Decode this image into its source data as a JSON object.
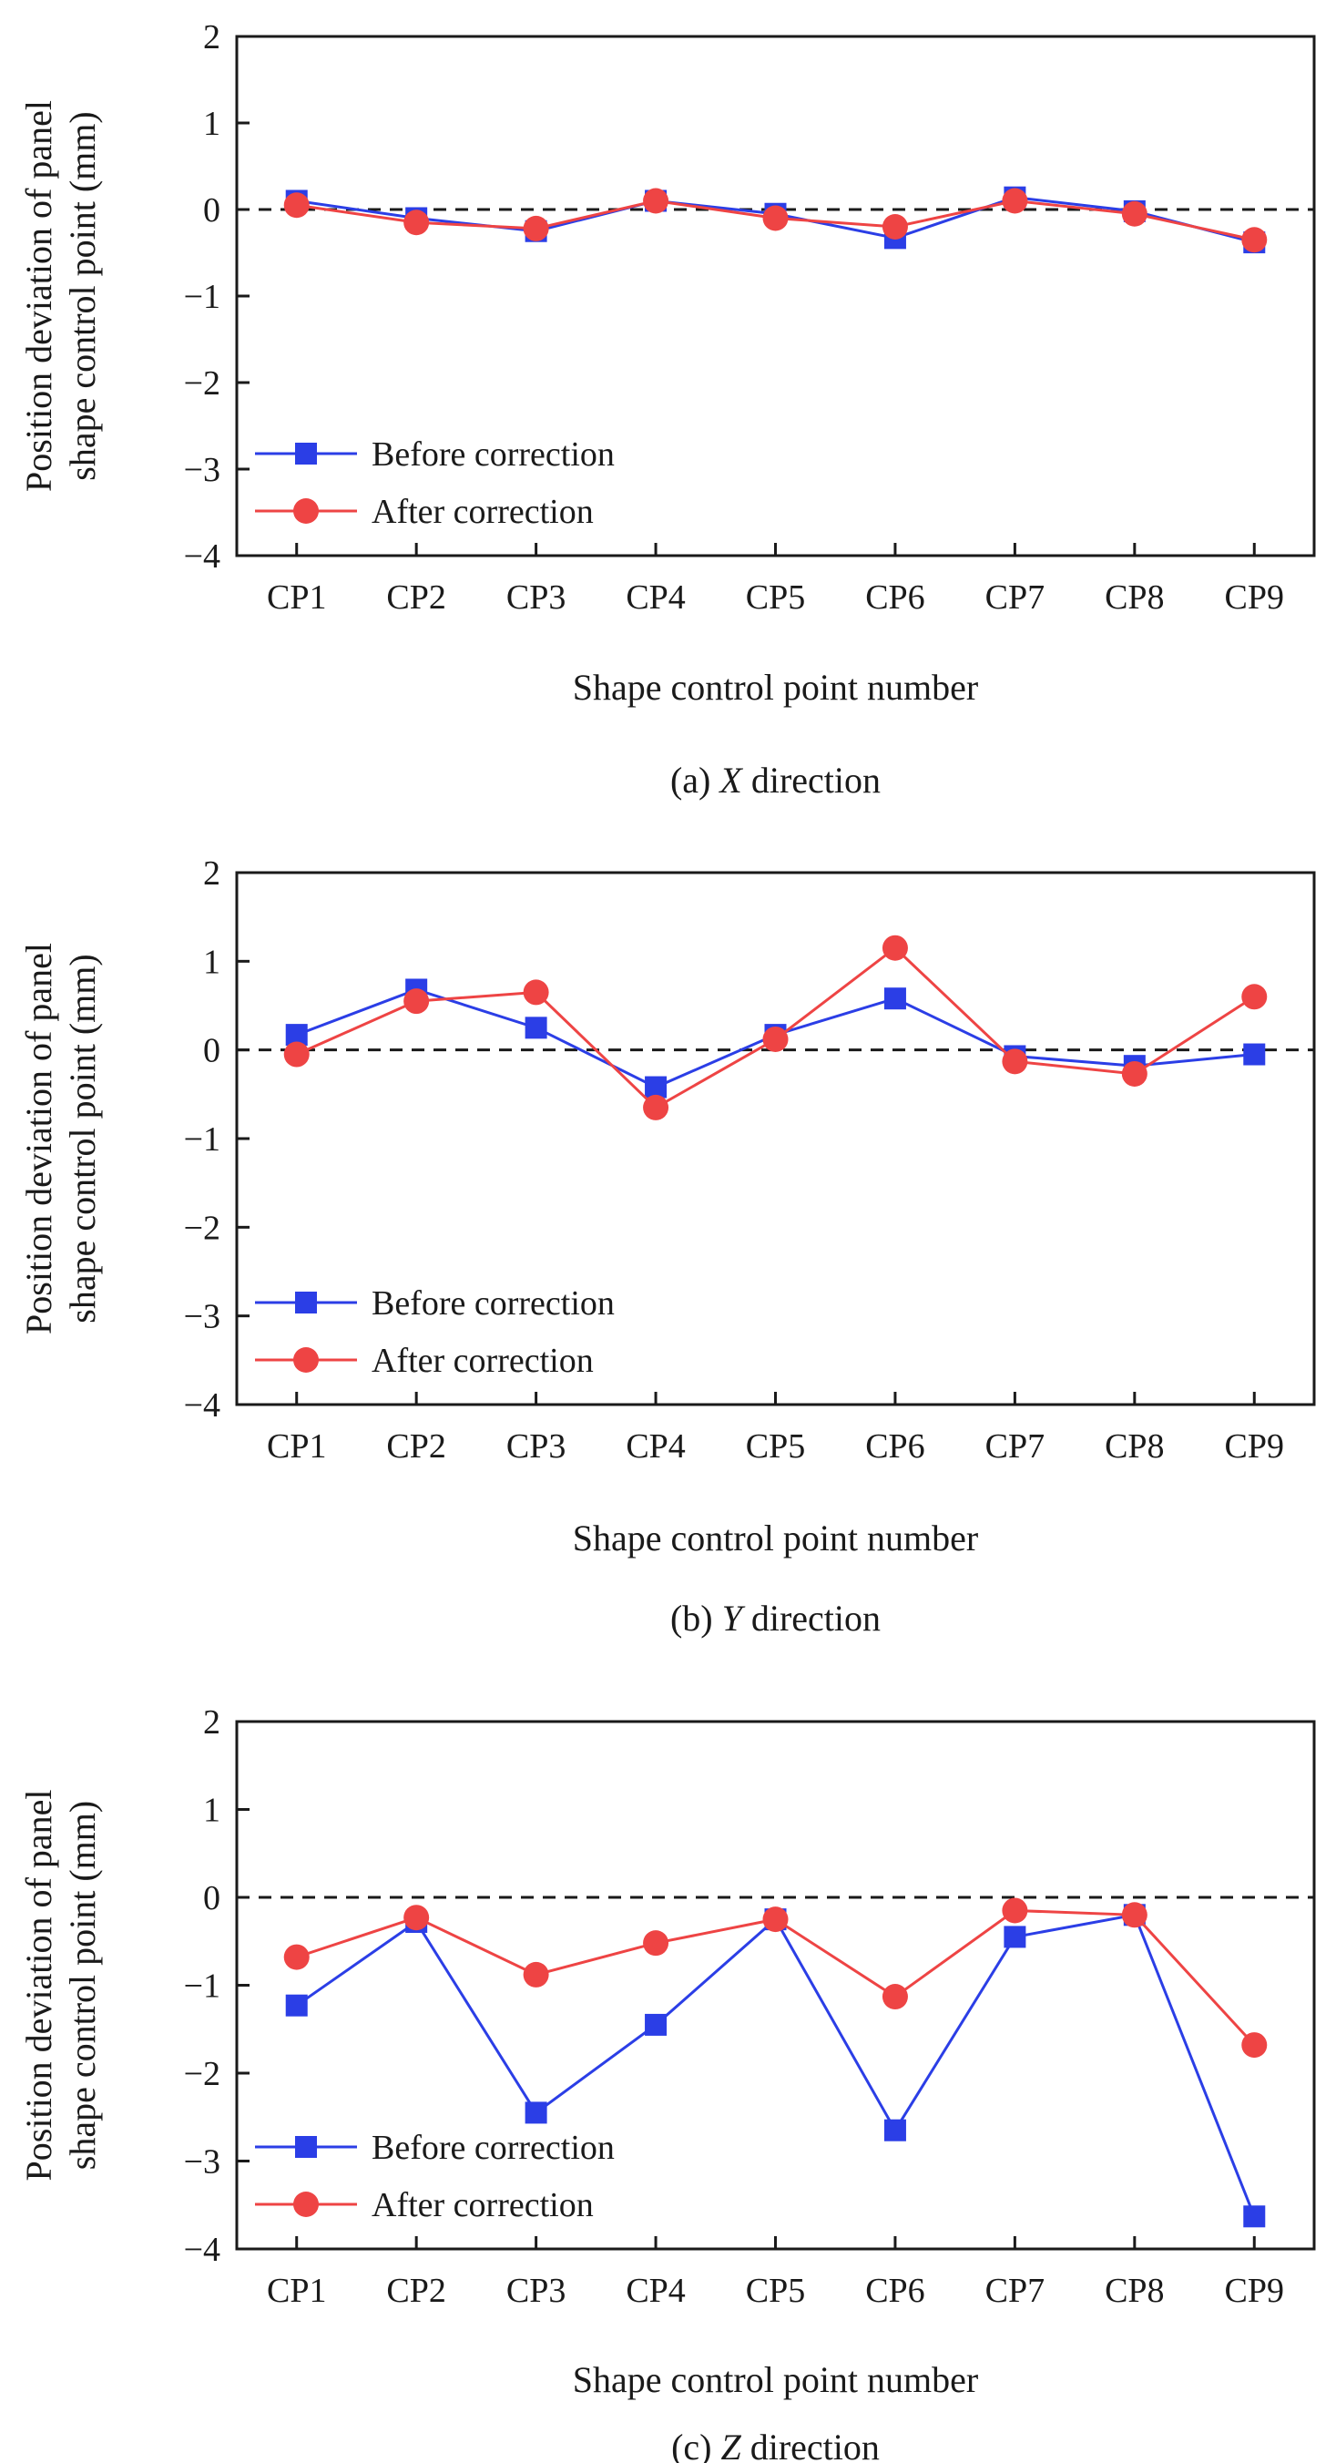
{
  "chart_data": [
    {
      "type": "line",
      "caption_prefix": "(a) ",
      "caption_var": "X",
      "caption_suffix": " direction",
      "xlabel": "Shape control point number",
      "ylabel_line1": "Position deviation of panel",
      "ylabel_line2": "shape control point (mm)",
      "categories": [
        "CP1",
        "CP2",
        "CP3",
        "CP4",
        "CP5",
        "CP6",
        "CP7",
        "CP8",
        "CP9"
      ],
      "ylim": [
        -4,
        2
      ],
      "yticks": [
        "−4",
        "−3",
        "−2",
        "−1",
        "0",
        "1",
        "2"
      ],
      "reference_line": 0,
      "legend_position": "bottom-left",
      "series": [
        {
          "name": "Before correction",
          "marker": "square",
          "color": "#2b3ee6",
          "values": [
            0.1,
            -0.1,
            -0.25,
            0.1,
            -0.05,
            -0.33,
            0.14,
            -0.02,
            -0.38
          ]
        },
        {
          "name": "After correction",
          "marker": "circle",
          "color": "#ee4444",
          "values": [
            0.05,
            -0.15,
            -0.22,
            0.1,
            -0.1,
            -0.2,
            0.1,
            -0.05,
            -0.35
          ]
        }
      ]
    },
    {
      "type": "line",
      "caption_prefix": "(b) ",
      "caption_var": "Y",
      "caption_suffix": " direction",
      "xlabel": "Shape control point number",
      "ylabel_line1": "Position deviation of panel",
      "ylabel_line2": "shape control point (mm)",
      "categories": [
        "CP1",
        "CP2",
        "CP3",
        "CP4",
        "CP5",
        "CP6",
        "CP7",
        "CP8",
        "CP9"
      ],
      "ylim": [
        -4,
        2
      ],
      "yticks": [
        "−4",
        "−3",
        "−2",
        "−1",
        "0",
        "1",
        "2"
      ],
      "reference_line": 0,
      "legend_position": "bottom-left",
      "series": [
        {
          "name": "Before correction",
          "marker": "square",
          "color": "#2b3ee6",
          "values": [
            0.17,
            0.68,
            0.25,
            -0.42,
            0.17,
            0.58,
            -0.07,
            -0.18,
            -0.05
          ]
        },
        {
          "name": "After correction",
          "marker": "circle",
          "color": "#ee4444",
          "values": [
            -0.05,
            0.55,
            0.65,
            -0.65,
            0.12,
            1.15,
            -0.13,
            -0.27,
            0.6
          ]
        }
      ]
    },
    {
      "type": "line",
      "caption_prefix": "(c) ",
      "caption_var": "Z",
      "caption_suffix": " direction",
      "xlabel": "Shape control point number",
      "ylabel_line1": "Position deviation of panel",
      "ylabel_line2": "shape control point (mm)",
      "categories": [
        "CP1",
        "CP2",
        "CP3",
        "CP4",
        "CP5",
        "CP6",
        "CP7",
        "CP8",
        "CP9"
      ],
      "ylim": [
        -4,
        2
      ],
      "yticks": [
        "−4",
        "−3",
        "−2",
        "−1",
        "0",
        "1",
        "2"
      ],
      "reference_line": 0,
      "legend_position": "bottom-left",
      "series": [
        {
          "name": "Before correction",
          "marker": "square",
          "color": "#2b3ee6",
          "values": [
            -1.23,
            -0.28,
            -2.45,
            -1.45,
            -0.25,
            -2.65,
            -0.45,
            -0.2,
            -3.63
          ]
        },
        {
          "name": "After correction",
          "marker": "circle",
          "color": "#ee4444",
          "values": [
            -0.68,
            -0.23,
            -0.88,
            -0.52,
            -0.25,
            -1.13,
            -0.15,
            -0.2,
            -1.68
          ]
        }
      ]
    }
  ]
}
